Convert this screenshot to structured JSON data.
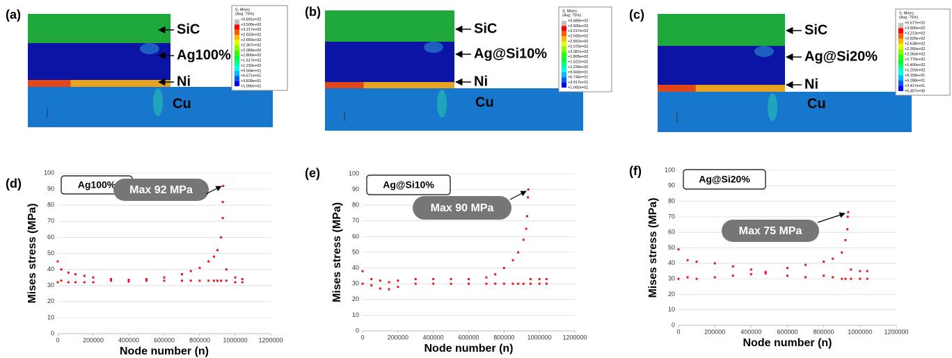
{
  "fea_panels": [
    {
      "label": "(a)",
      "legend_title": "S, Mises",
      "legend_subtitle": "(Avg: 75%)",
      "legend_values": [
        "+5.691e+02",
        "+3.500e+02",
        "+3.217e+02",
        "+2.933e+02",
        "+2.650e+02",
        "+2.367e+02",
        "+2.083e+02",
        "+1.800e+02",
        "+1.517e+02",
        "+1.233e+02",
        "+9.504e+01",
        "+6.671e+01",
        "+3.839e+01",
        "+1.006e+01"
      ],
      "layers": [
        "SiC",
        "Ag100%",
        "Ni",
        "Cu"
      ]
    },
    {
      "label": "(b)",
      "legend_title": "S, Mises",
      "legend_subtitle": "(Avg: 75%)",
      "legend_values": [
        "+5.689e+02",
        "+3.500e+02",
        "+3.217e+02",
        "+2.935e+02",
        "+2.652e+02",
        "+2.370e+02",
        "+2.087e+02",
        "+1.805e+02",
        "+1.522e+02",
        "+1.239e+02",
        "+9.569e+01",
        "+6.745e+01",
        "+3.917e+01",
        "+1.092e+01"
      ],
      "layers": [
        "SiC",
        "Ag@Si10%",
        "Ni",
        "Cu"
      ]
    },
    {
      "label": "(c)",
      "legend_title": "S, Mises",
      "legend_subtitle": "(Avg: 75%)",
      "legend_values": [
        "+5.677e+02",
        "+3.500e+02",
        "+3.213e+02",
        "+2.925e+02",
        "+2.638e+02",
        "+2.350e+02",
        "+2.063e+02",
        "+1.775e+02",
        "+1.490e+02",
        "+1.203e+02",
        "+9.159e+01",
        "+6.288e+01",
        "+3.417e+01",
        "+5.457e+00"
      ],
      "layers": [
        "SiC",
        "Ag@Si20%",
        "Ni",
        "Cu"
      ]
    }
  ],
  "chart_data": [
    {
      "type": "scatter",
      "panel": "(d)",
      "inset_label": "Ag100%",
      "annotation": "Max 92 MPa",
      "x_label": "Node number (n)",
      "y_label": "Mises stress (MPa)",
      "color": "#e8161b",
      "grid": true,
      "xlim": [
        0,
        1200000
      ],
      "xticks": [
        0,
        200000,
        400000,
        600000,
        800000,
        1000000,
        1200000
      ],
      "ylim": [
        0,
        100
      ],
      "yticks": [
        0,
        10,
        20,
        30,
        40,
        50,
        60,
        70,
        80,
        90,
        100
      ],
      "x": [
        0,
        0,
        20000,
        20000,
        60000,
        60000,
        100000,
        100000,
        150000,
        150000,
        200000,
        200000,
        300000,
        300000,
        400000,
        400000,
        500000,
        500000,
        600000,
        600000,
        700000,
        700000,
        750000,
        750000,
        800000,
        800000,
        850000,
        850000,
        880000,
        880000,
        900000,
        900000,
        920000,
        920000,
        930000,
        930000,
        932000,
        950000,
        950000,
        1000000,
        1000000,
        1040000,
        1040000
      ],
      "values": [
        45,
        32,
        40,
        33,
        38,
        32,
        37,
        32,
        36,
        32,
        35,
        32,
        34,
        33,
        33.5,
        32.5,
        34,
        33,
        35,
        33,
        37,
        33,
        39,
        33,
        41,
        33,
        45,
        33,
        48,
        33,
        52,
        33,
        60,
        33,
        72,
        82,
        92,
        40,
        33,
        35,
        32,
        34,
        32
      ]
    },
    {
      "type": "scatter",
      "panel": "(e)",
      "inset_label": "Ag@Si10%",
      "annotation": "Max 90 MPa",
      "x_label": "Node number (n)",
      "y_label": "Mises stress (MPa)",
      "color": "#e8161b",
      "grid": true,
      "xlim": [
        0,
        1200000
      ],
      "xticks": [
        0,
        200000,
        400000,
        600000,
        800000,
        1000000,
        1200000
      ],
      "ylim": [
        0,
        100
      ],
      "yticks": [
        0,
        10,
        20,
        30,
        40,
        50,
        60,
        70,
        80,
        90,
        100
      ],
      "x": [
        0,
        0,
        50000,
        50000,
        100000,
        100000,
        150000,
        150000,
        200000,
        200000,
        300000,
        300000,
        400000,
        400000,
        500000,
        500000,
        600000,
        600000,
        700000,
        700000,
        750000,
        750000,
        800000,
        800000,
        850000,
        850000,
        880000,
        880000,
        910000,
        910000,
        925000,
        930000,
        935000,
        937000,
        950000,
        950000,
        1000000,
        1000000,
        1040000,
        1040000
      ],
      "values": [
        38,
        30,
        33,
        29,
        32,
        27,
        31,
        26.5,
        32,
        28,
        33,
        30,
        33,
        30,
        33,
        30,
        33,
        30,
        34,
        30,
        36,
        30,
        40,
        30,
        45,
        30,
        50,
        30,
        58,
        30,
        65,
        73,
        85,
        90,
        33,
        30,
        33,
        30,
        33,
        30
      ]
    },
    {
      "type": "scatter",
      "panel": "(f)",
      "inset_label": "Ag@Si20%",
      "annotation": "Max 75 MPa",
      "x_label": "Node number (n)",
      "y_label": "Mises stress (MPa)",
      "color": "#e8161b",
      "grid": true,
      "xlim": [
        0,
        1200000
      ],
      "xticks": [
        0,
        200000,
        400000,
        600000,
        800000,
        1000000,
        1200000
      ],
      "ylim": [
        0,
        100
      ],
      "yticks": [
        0,
        10,
        20,
        30,
        40,
        50,
        60,
        70,
        80,
        90,
        100
      ],
      "x": [
        0,
        0,
        50000,
        50000,
        100000,
        100000,
        200000,
        200000,
        300000,
        300000,
        400000,
        400000,
        480000,
        480000,
        600000,
        600000,
        700000,
        700000,
        800000,
        800000,
        850000,
        850000,
        900000,
        900000,
        920000,
        920000,
        930000,
        932000,
        935000,
        950000,
        950000,
        1000000,
        1000000,
        1040000,
        1040000
      ],
      "values": [
        49,
        30,
        42,
        31,
        41,
        30,
        40,
        31,
        38,
        32,
        36,
        33,
        34.5,
        33.5,
        37,
        32,
        39,
        31,
        41,
        32,
        43,
        31,
        47,
        30,
        55,
        30,
        62,
        70,
        73,
        36,
        30,
        35,
        30,
        35,
        30
      ]
    }
  ]
}
